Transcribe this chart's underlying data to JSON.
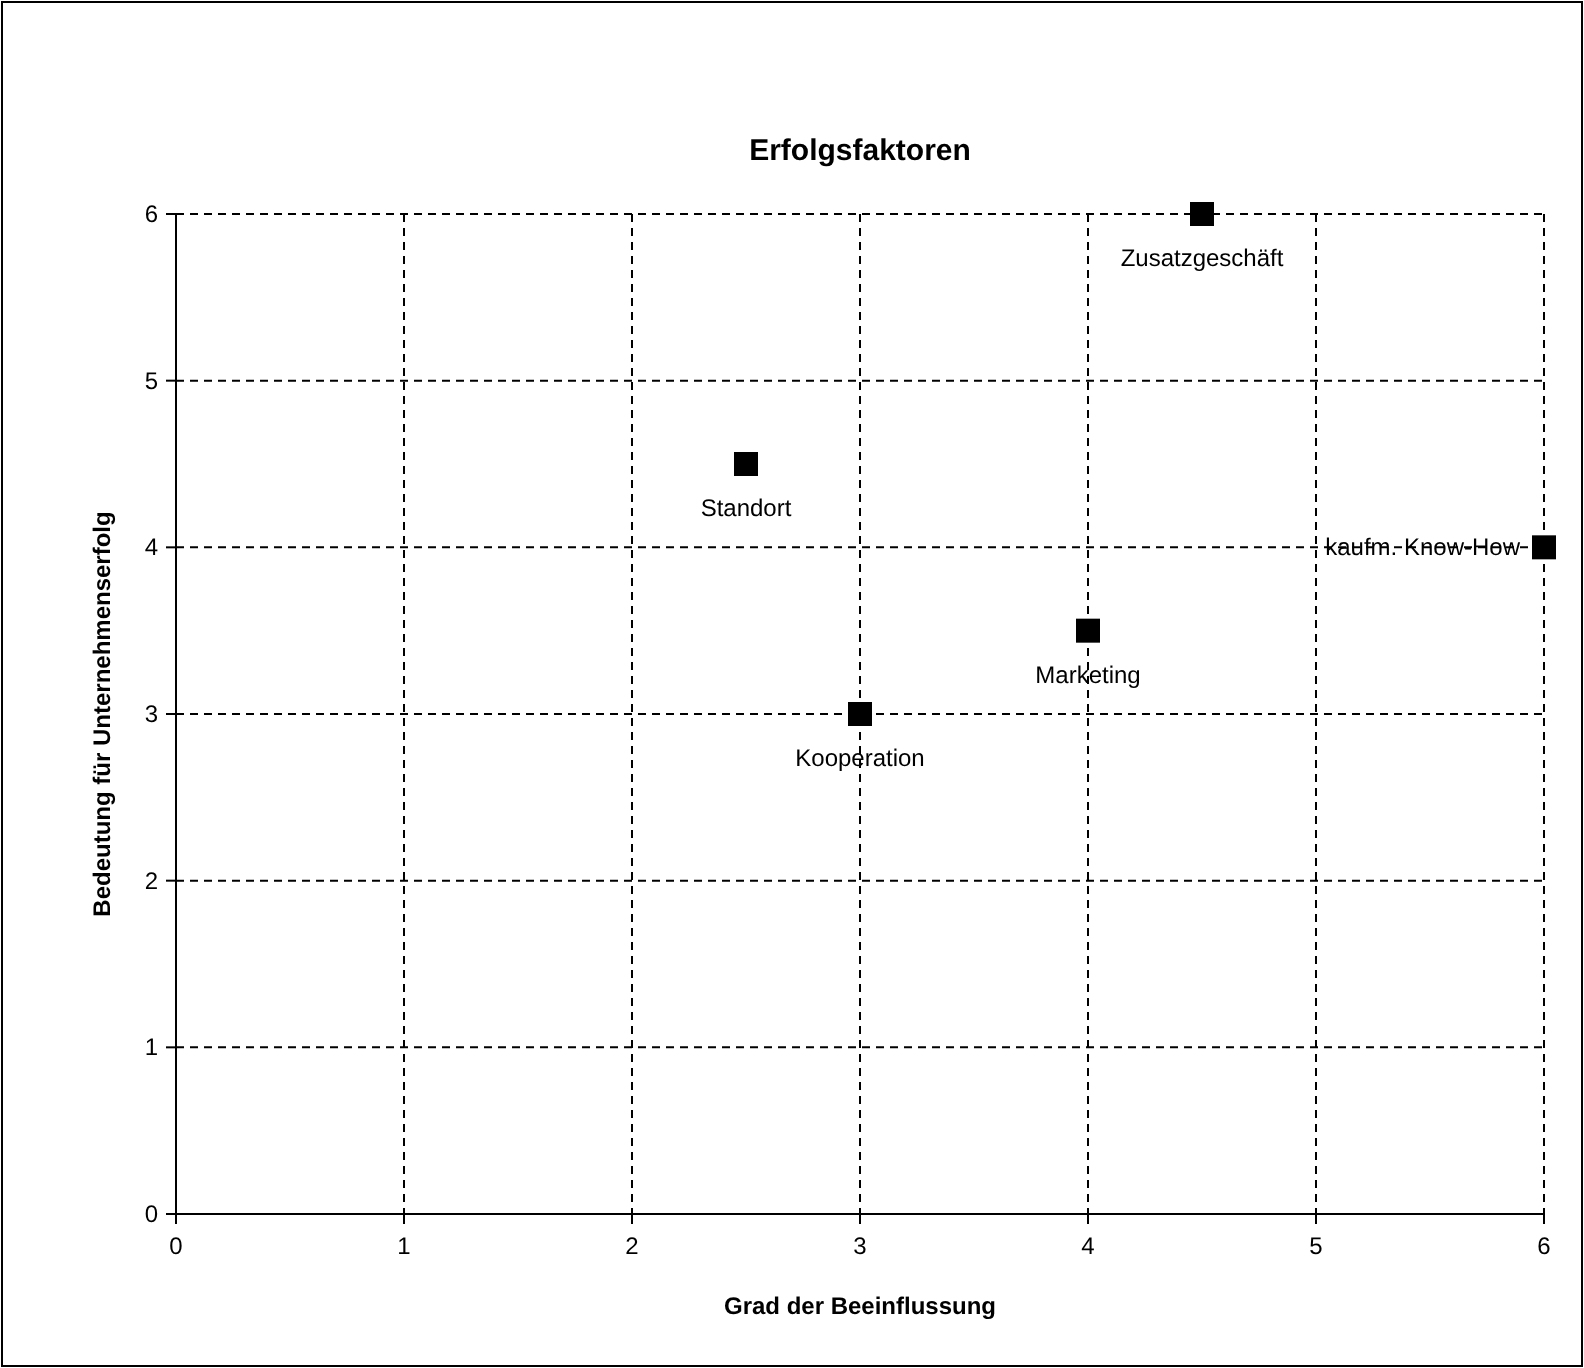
{
  "chart_data": {
    "type": "scatter",
    "title": "Erfolgsfaktoren",
    "xlabel": "Grad der Beeinflussung",
    "ylabel": "Bedeutung für Unternehmenserfolg",
    "x": [
      2.5,
      3,
      4,
      4.5,
      6
    ],
    "values": [
      4.5,
      3,
      3.5,
      6,
      4
    ],
    "color": "#000000",
    "marker": "square",
    "annotations": [
      {
        "text": "Standort",
        "x": 2.5,
        "y": 4.5
      },
      {
        "text": "Kooperation",
        "x": 3,
        "y": 3
      },
      {
        "text": "Marketing",
        "x": 4,
        "y": 3.5
      },
      {
        "text": "Zusatzgeschäft",
        "x": 4.5,
        "y": 6
      },
      {
        "text": "kaufm. Know-How",
        "x": 6,
        "y": 4
      }
    ],
    "xlim": [
      0,
      6
    ],
    "ylim": [
      0,
      6
    ],
    "xticks": [
      0,
      1,
      2,
      3,
      4,
      5,
      6
    ],
    "yticks": [
      0,
      1,
      2,
      3,
      4,
      5,
      6
    ],
    "grid": true
  }
}
